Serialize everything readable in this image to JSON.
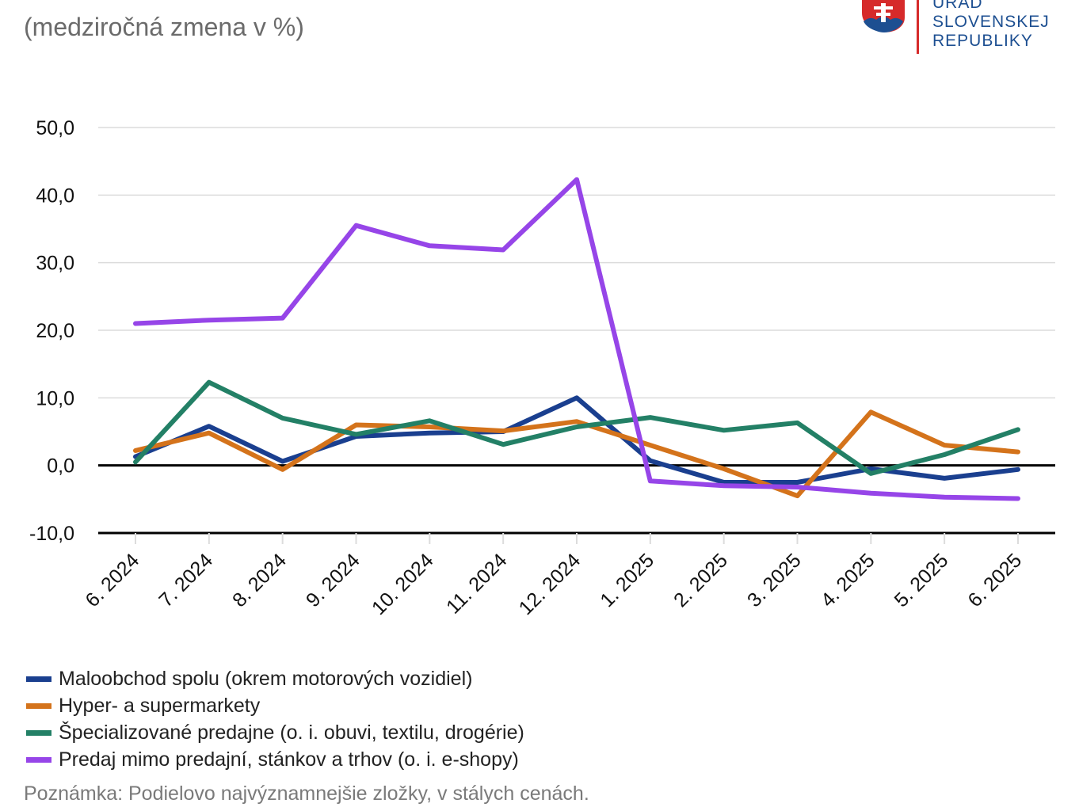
{
  "header": {
    "subtitle": "(medziročná zmena v %)"
  },
  "logo": {
    "line1": "ÚRAD",
    "line2": "SLOVENSKEJ",
    "line3": "REPUBLIKY",
    "color": "#1d4f91",
    "shield_red": "#d62a2a",
    "shield_blue": "#1d4f91"
  },
  "chart_data": {
    "type": "line",
    "x": [
      "6. 2024",
      "7. 2024",
      "8. 2024",
      "9. 2024",
      "10. 2024",
      "11. 2024",
      "12. 2024",
      "1. 2025",
      "2. 2025",
      "3. 2025",
      "4. 2025",
      "5. 2025",
      "6. 2025"
    ],
    "ylim": [
      -10,
      50
    ],
    "yticks": [
      "50,0",
      "40,0",
      "30,0",
      "20,0",
      "10,0",
      "0,0",
      "-10,0"
    ],
    "ytick_values": [
      50,
      40,
      30,
      20,
      10,
      0,
      -10
    ],
    "grid": true,
    "legend_position": "bottom",
    "series": [
      {
        "name": "Maloobchod spolu (okrem motorových vozidiel)",
        "color": "#1a3f8f",
        "values": [
          1.3,
          5.8,
          0.6,
          4.3,
          4.8,
          5.0,
          10.0,
          0.7,
          -2.5,
          -2.5,
          -0.5,
          -1.9,
          -0.6
        ]
      },
      {
        "name": "Hyper- a supermarkety",
        "color": "#d4731b",
        "values": [
          2.2,
          4.8,
          -0.6,
          6.0,
          5.7,
          5.1,
          6.5,
          3.0,
          -0.5,
          -4.5,
          7.9,
          3.0,
          2.0
        ]
      },
      {
        "name": "Špecializované predajne (o. i. obuvi, textilu, drogérie)",
        "color": "#238066",
        "values": [
          0.5,
          12.3,
          7.0,
          4.6,
          6.6,
          3.1,
          5.7,
          7.1,
          5.2,
          6.3,
          -1.2,
          1.6,
          5.3
        ]
      },
      {
        "name": "Predaj mimo predajní, stánkov a trhov (o. i. e-shopy)",
        "color": "#9645e8",
        "values": [
          21.0,
          21.5,
          21.8,
          35.5,
          32.5,
          31.9,
          42.3,
          -2.3,
          -3.0,
          -3.2,
          -4.1,
          -4.7,
          -4.9
        ]
      }
    ]
  },
  "note": "Poznámka: Podielovo najvýznamnejšie zložky, v stálych cenách."
}
